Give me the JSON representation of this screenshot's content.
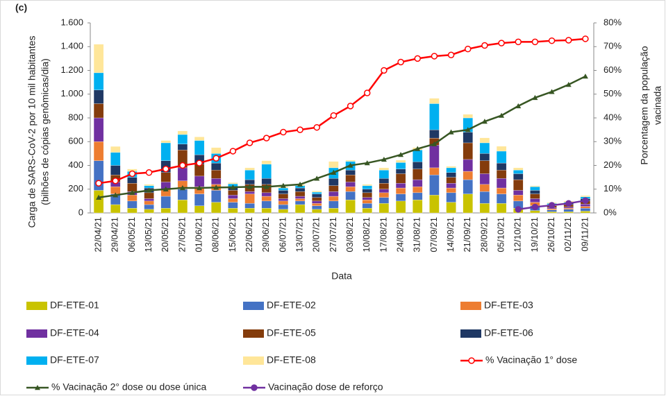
{
  "chart_data": {
    "type": "bar",
    "panel_label": "(c)",
    "xlabel": "Data",
    "ylabel": [
      "Carga de SARS-CoV-2 por 10 mil habitantes",
      "(bilhões de cópias genômicas/dia)"
    ],
    "y2label": [
      "Porcentagem da população",
      "vacinada"
    ],
    "categories": [
      "22/04/21",
      "29/04/21",
      "06/05/21",
      "13/05/21",
      "20/05/21",
      "27/05/21",
      "01/06/21",
      "08/06/21",
      "15/06/21",
      "22/06/21",
      "29/06/21",
      "06/07/21",
      "13/07/21",
      "20/07/21",
      "27/07/21",
      "03/08/21",
      "10/08/21",
      "17/08/21",
      "24/08/21",
      "31/08/21",
      "07/09/21",
      "14/09/21",
      "21/09/21",
      "28/09/21",
      "05/10/21",
      "12/10/21",
      "19/10/21",
      "26/10/21",
      "02/11/21",
      "09/11/21"
    ],
    "ylim": [
      0,
      1600
    ],
    "yticks": [
      {
        "value": 0,
        "label": "0"
      },
      {
        "value": 200,
        "label": "200"
      },
      {
        "value": 400,
        "label": "400"
      },
      {
        "value": 600,
        "label": "600"
      },
      {
        "value": 800,
        "label": "800"
      },
      {
        "value": 1000,
        "label": "1.000"
      },
      {
        "value": 1200,
        "label": "1.200"
      },
      {
        "value": 1400,
        "label": "1.400"
      },
      {
        "value": 1600,
        "label": "1.600"
      }
    ],
    "y2lim": [
      0,
      80
    ],
    "y2ticks": [
      {
        "value": 0,
        "label": "0%"
      },
      {
        "value": 10,
        "label": "10%"
      },
      {
        "value": 20,
        "label": "20%"
      },
      {
        "value": 30,
        "label": "30%"
      },
      {
        "value": 40,
        "label": "40%"
      },
      {
        "value": 50,
        "label": "50%"
      },
      {
        "value": 60,
        "label": "60%"
      },
      {
        "value": 70,
        "label": "70%"
      },
      {
        "value": 80,
        "label": "80%"
      }
    ],
    "series": [
      {
        "name": "DF-ETE-01",
        "type": "bar",
        "color": "#c9c300",
        "values": [
          190,
          70,
          40,
          30,
          40,
          110,
          60,
          90,
          40,
          40,
          40,
          30,
          70,
          30,
          40,
          110,
          40,
          80,
          100,
          110,
          150,
          90,
          160,
          80,
          80,
          40,
          20,
          10,
          10,
          15
        ]
      },
      {
        "name": "DF-ETE-02",
        "type": "bar",
        "color": "#4472c4",
        "values": [
          250,
          90,
          60,
          40,
          100,
          90,
          100,
          100,
          50,
          40,
          60,
          40,
          30,
          30,
          60,
          70,
          40,
          50,
          60,
          60,
          170,
          80,
          120,
          100,
          80,
          60,
          40,
          15,
          20,
          25
        ]
      },
      {
        "name": "DF-ETE-03",
        "type": "bar",
        "color": "#ed7d31",
        "values": [
          160,
          60,
          50,
          30,
          60,
          70,
          60,
          50,
          30,
          80,
          40,
          30,
          20,
          20,
          40,
          40,
          30,
          40,
          50,
          50,
          60,
          40,
          70,
          60,
          50,
          50,
          30,
          10,
          10,
          15
        ]
      },
      {
        "name": "DF-ETE-04",
        "type": "bar",
        "color": "#7030a0",
        "values": [
          200,
          40,
          30,
          20,
          60,
          110,
          90,
          50,
          30,
          20,
          30,
          20,
          20,
          20,
          40,
          40,
          20,
          30,
          40,
          60,
          190,
          40,
          100,
          90,
          80,
          40,
          30,
          10,
          10,
          20
        ]
      },
      {
        "name": "DF-ETE-05",
        "type": "bar",
        "color": "#843c0c",
        "values": [
          120,
          60,
          70,
          50,
          80,
          150,
          100,
          70,
          40,
          60,
          70,
          40,
          40,
          30,
          50,
          60,
          40,
          50,
          80,
          90,
          60,
          50,
          140,
          110,
          70,
          90,
          40,
          15,
          20,
          25
        ]
      },
      {
        "name": "DF-ETE-06",
        "type": "bar",
        "color": "#1f3864",
        "values": [
          115,
          80,
          50,
          40,
          100,
          50,
          80,
          60,
          30,
          40,
          50,
          30,
          30,
          30,
          60,
          40,
          30,
          40,
          40,
          60,
          70,
          40,
          90,
          60,
          60,
          50,
          30,
          10,
          10,
          20
        ]
      },
      {
        "name": "DF-ETE-07",
        "type": "bar",
        "color": "#00b0f0",
        "values": [
          145,
          110,
          50,
          20,
          150,
          80,
          120,
          80,
          25,
          80,
          120,
          20,
          20,
          15,
          90,
          74,
          30,
          70,
          54,
          100,
          220,
          40,
          120,
          90,
          100,
          30,
          30,
          10,
          10,
          16
        ]
      },
      {
        "name": "DF-ETE-08",
        "type": "bar",
        "color": "#ffe699",
        "values": [
          240,
          50,
          20,
          10,
          20,
          30,
          30,
          50,
          10,
          20,
          30,
          10,
          10,
          10,
          53,
          10,
          10,
          20,
          20,
          20,
          45,
          12,
          30,
          42,
          41,
          20,
          8,
          8,
          10,
          10
        ]
      },
      {
        "name": "% Vacinação 1° dose",
        "type": "line",
        "axis": "y2",
        "color": "#ff0000",
        "marker": "circle-open",
        "values": [
          12.5,
          13.5,
          16.5,
          17,
          18.5,
          20,
          21,
          23,
          26,
          29.5,
          31.5,
          34,
          35,
          36,
          41,
          45,
          50.5,
          60,
          63.5,
          65,
          66,
          66.5,
          69,
          70.5,
          71.5,
          72,
          72,
          72.5,
          72.7,
          73.3
        ]
      },
      {
        "name": "% Vacinação 2° dose ou dose única",
        "type": "line",
        "axis": "y2",
        "color": "#375623",
        "marker": "triangle",
        "values": [
          6.5,
          7.5,
          8.5,
          9.5,
          10,
          10.5,
          10.5,
          10.7,
          10.8,
          11,
          11,
          11.5,
          12,
          14.5,
          17,
          20,
          21,
          22.5,
          24.5,
          27,
          29,
          34,
          35,
          38.5,
          41,
          45,
          48.5,
          51,
          54,
          57.5
        ]
      },
      {
        "name": "Vacinação dose de reforço",
        "type": "line",
        "axis": "y2",
        "color": "#7030a0",
        "marker": "circle",
        "values": [
          null,
          null,
          null,
          null,
          null,
          null,
          null,
          null,
          null,
          null,
          null,
          null,
          null,
          null,
          null,
          null,
          null,
          null,
          null,
          null,
          null,
          null,
          null,
          null,
          null,
          1.5,
          2.5,
          3.2,
          4,
          5.2
        ]
      }
    ]
  }
}
